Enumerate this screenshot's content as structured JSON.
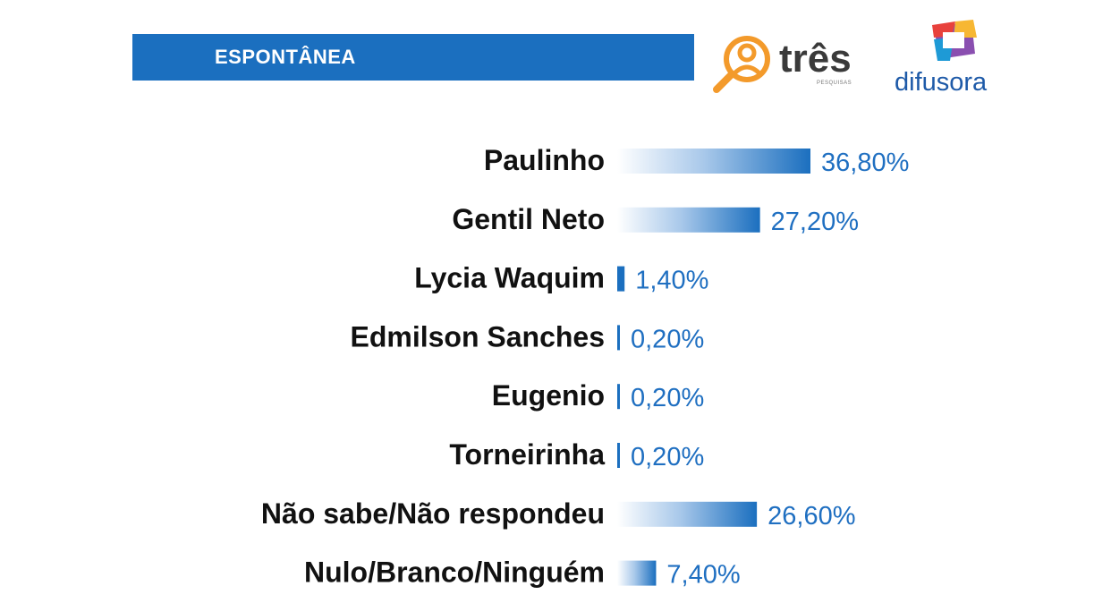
{
  "header": {
    "title": "ESPONTÂNEA",
    "banner_color": "#1b6fbf"
  },
  "logos": {
    "tres": {
      "word": "três",
      "sub": "PESQUISAS",
      "icon": "magnifier-person-icon",
      "color": "#f39a2b"
    },
    "difusora": {
      "word": "difusora",
      "icon": "tv-screen-icon",
      "colors": [
        "#e8413c",
        "#f7b733",
        "#1e9ad6",
        "#8a4fb0"
      ]
    }
  },
  "chart_data": {
    "type": "bar",
    "orientation": "horizontal",
    "categories": [
      "Paulinho",
      "Gentil Neto",
      "Lycia Waquim",
      "Edmilson Sanches",
      "Eugenio",
      "Torneirinha",
      "Não sabe/Não respondeu",
      "Nulo/Branco/Ninguém"
    ],
    "values": [
      36.8,
      27.2,
      1.4,
      0.2,
      0.2,
      0.2,
      26.6,
      7.4
    ],
    "value_labels": [
      "36,80%",
      "27,20%",
      "1,40%",
      "0,20%",
      "0,20%",
      "0,20%",
      "26,60%",
      "7,40%"
    ],
    "title": "",
    "xlabel": "",
    "ylabel": "",
    "xlim": [
      0,
      36.8
    ],
    "grid": false,
    "bar_color": "#1b6fbf"
  }
}
